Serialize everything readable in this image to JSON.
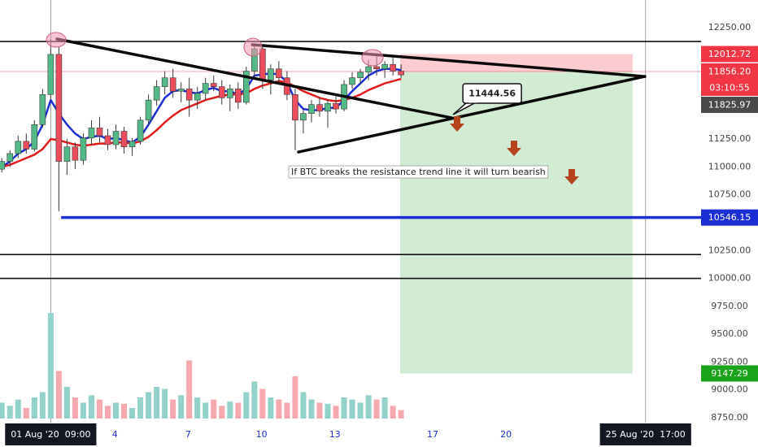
{
  "chart_data": {
    "type": "candlestick",
    "xlim": [
      -0.7,
      27.98
    ],
    "ylim": [
      8706,
      12498
    ],
    "yticks": [
      {
        "value": 12250,
        "label": "12250.00"
      },
      {
        "value": 11250,
        "label": "11250.00"
      },
      {
        "value": 11000,
        "label": "11000.00"
      },
      {
        "value": 10750,
        "label": "10750.00"
      },
      {
        "value": 10250,
        "label": "10250.00"
      },
      {
        "value": 10000,
        "label": "10000.00"
      },
      {
        "value": 9750,
        "label": "9750.00"
      },
      {
        "value": 9500,
        "label": "9500.00"
      },
      {
        "value": 9250,
        "label": "9250.00"
      },
      {
        "value": 9000,
        "label": "9000.00"
      },
      {
        "value": 8750,
        "label": "8750.00"
      }
    ],
    "xticks": [
      4,
      7,
      10,
      13,
      17,
      20
    ],
    "crosshair_labels": [
      {
        "value": 1.375,
        "label": "01 Aug '20  09:00"
      },
      {
        "value": 25.708,
        "label": "25 Aug '20  17:00"
      }
    ],
    "up_color": "#53b987",
    "down_color": "#eb4d5c",
    "volume_up_color": "#92d2ca",
    "volume_down_color": "#f6aab0",
    "x": [
      -0.625,
      -0.292,
      0.042,
      0.375,
      0.708,
      1.042,
      1.375,
      1.708,
      2.042,
      2.375,
      2.708,
      3.042,
      3.375,
      3.708,
      4.042,
      4.375,
      4.708,
      5.042,
      5.375,
      5.708,
      6.042,
      6.375,
      6.708,
      7.042,
      7.375,
      7.708,
      8.042,
      8.375,
      8.708,
      9.042,
      9.375,
      9.708,
      10.042,
      10.375,
      10.708,
      11.042,
      11.375,
      11.708,
      12.042,
      12.375,
      12.708,
      13.042,
      13.375,
      13.708,
      14.042,
      14.375,
      14.708,
      15.042,
      15.375,
      15.708
    ],
    "open": [
      10980,
      11050,
      11120,
      11230,
      11160,
      11380,
      11650,
      12010,
      11050,
      11180,
      11060,
      11260,
      11350,
      11280,
      11200,
      11320,
      11180,
      11230,
      11420,
      11600,
      11720,
      11800,
      11680,
      11700,
      11600,
      11660,
      11750,
      11720,
      11620,
      11700,
      11580,
      11860,
      12060,
      11780,
      11880,
      11800,
      11650,
      11420,
      11480,
      11560,
      11500,
      11570,
      11520,
      11740,
      11800,
      11850,
      11900,
      11880,
      11920,
      11860
    ],
    "high": [
      11080,
      11150,
      11280,
      11300,
      11420,
      11700,
      12150,
      12080,
      11250,
      11220,
      11300,
      11420,
      11450,
      11340,
      11380,
      11360,
      11260,
      11450,
      11650,
      11780,
      11860,
      11880,
      11760,
      11800,
      11720,
      11800,
      11820,
      11780,
      11740,
      11760,
      11900,
      12100,
      12080,
      11920,
      11950,
      11860,
      11700,
      11520,
      11600,
      11620,
      11600,
      11640,
      11780,
      11850,
      11880,
      11960,
      12000,
      11950,
      11980,
      11920
    ],
    "low": [
      10950,
      11000,
      11080,
      11120,
      11140,
      11350,
      11600,
      10600,
      10930,
      10980,
      11020,
      11200,
      11220,
      11150,
      11160,
      11120,
      11100,
      11200,
      11380,
      11550,
      11650,
      11620,
      11580,
      11450,
      11520,
      11600,
      11680,
      11560,
      11500,
      11520,
      11560,
      11800,
      11700,
      11650,
      11760,
      11600,
      11150,
      11300,
      11400,
      11450,
      11350,
      11480,
      11500,
      11700,
      11740,
      11780,
      11820,
      11800,
      11820,
      11800
    ],
    "close": [
      11050,
      11120,
      11230,
      11160,
      11380,
      11650,
      12010,
      11050,
      11180,
      11060,
      11260,
      11350,
      11280,
      11200,
      11320,
      11180,
      11230,
      11420,
      11600,
      11720,
      11800,
      11680,
      11700,
      11600,
      11660,
      11750,
      11720,
      11620,
      11700,
      11580,
      11860,
      12060,
      11780,
      11880,
      11800,
      11650,
      11420,
      11480,
      11560,
      11500,
      11570,
      11520,
      11740,
      11800,
      11850,
      11900,
      11880,
      11920,
      11860,
      11825.97
    ],
    "volume": [
      15,
      12,
      18,
      10,
      20,
      25,
      100,
      45,
      30,
      20,
      15,
      22,
      18,
      12,
      15,
      14,
      10,
      20,
      25,
      30,
      28,
      18,
      22,
      55,
      20,
      15,
      18,
      12,
      16,
      15,
      25,
      35,
      28,
      20,
      18,
      15,
      40,
      25,
      18,
      15,
      14,
      12,
      20,
      18,
      15,
      22,
      18,
      20,
      12,
      8
    ],
    "vlim": [
      0,
      100
    ],
    "overlays": [
      {
        "color": "#1c2fd6",
        "values": [
          11000,
          11050,
          11120,
          11160,
          11230,
          11380,
          11600,
          11480,
          11380,
          11300,
          11250,
          11270,
          11280,
          11250,
          11260,
          11240,
          11220,
          11270,
          11380,
          11500,
          11620,
          11680,
          11690,
          11670,
          11660,
          11690,
          11710,
          11680,
          11680,
          11650,
          11700,
          11820,
          11830,
          11840,
          11830,
          11760,
          11600,
          11520,
          11510,
          11510,
          11530,
          11530,
          11600,
          11680,
          11750,
          11820,
          11860,
          11880,
          11880,
          11870
        ]
      },
      {
        "color": "#e01b1b",
        "values": [
          11000,
          11020,
          11050,
          11080,
          11110,
          11160,
          11250,
          11240,
          11220,
          11200,
          11190,
          11200,
          11210,
          11210,
          11220,
          11220,
          11210,
          11230,
          11270,
          11330,
          11400,
          11460,
          11510,
          11540,
          11570,
          11600,
          11620,
          11640,
          11650,
          11650,
          11660,
          11700,
          11730,
          11750,
          11770,
          11760,
          11720,
          11680,
          11650,
          11620,
          11600,
          11590,
          11600,
          11620,
          11650,
          11690,
          11720,
          11750,
          11770,
          11790
        ]
      }
    ],
    "hlines": [
      {
        "value": 12126,
        "color": "#111111"
      },
      {
        "value": 10214,
        "color": "#111111"
      },
      {
        "value": 10000,
        "color": "#111111"
      }
    ],
    "support": {
      "value": 10546.15,
      "from": 1.8,
      "color": "#1c2fd6"
    },
    "trend_lines": [
      {
        "from": [
          1.63,
          12148
        ],
        "to": [
          17.77,
          11441
        ]
      },
      {
        "from": [
          9.62,
          12097
        ],
        "to": [
          25.68,
          11812
        ]
      },
      {
        "from": [
          11.51,
          11134
        ],
        "to": [
          25.68,
          11812
        ]
      }
    ],
    "position": {
      "x_start": 15.67,
      "x_end": 25.18,
      "stop": 12012.72,
      "entry": {
        "value": 11856.2,
        "label": "11856.20"
      },
      "target": 9147.29
    },
    "countdown": "03:10:55",
    "label_colors": {
      "stop": "#f23645",
      "entry": "#f23645",
      "last": "#4a4a4a",
      "support": "#1c2fd6",
      "target": "#1aa31a"
    },
    "callout": 11444.56,
    "annotation": "If BTC breaks the resistance trend line it will turn bearish"
  }
}
